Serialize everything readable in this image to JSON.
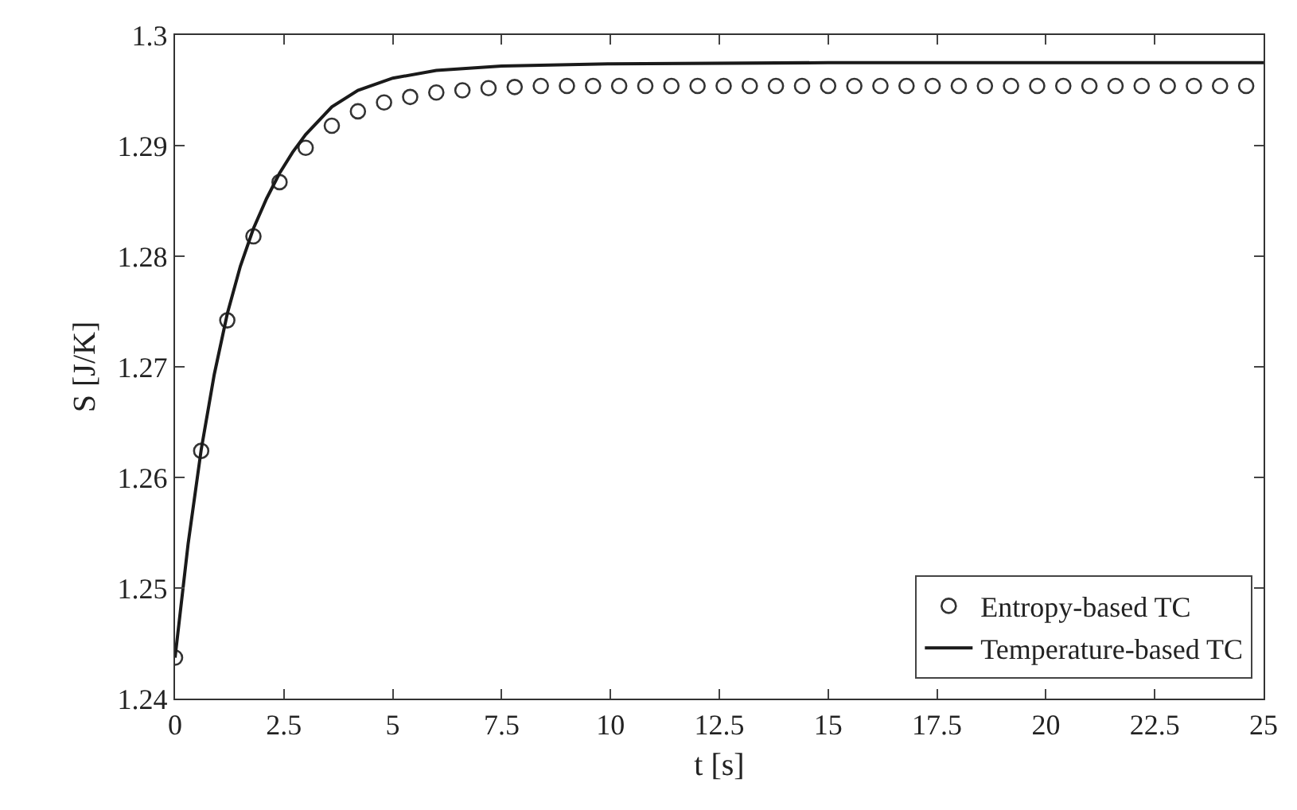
{
  "chart_data": {
    "type": "scatter",
    "xlabel": "t [s]",
    "ylabel": "S [J/K]",
    "xlim": [
      0,
      25
    ],
    "xticks": [
      0,
      2.5,
      5,
      7.5,
      10,
      12.5,
      15,
      17.5,
      20,
      22.5,
      25
    ],
    "ylim": [
      1.24,
      1.3
    ],
    "yticks": [
      1.24,
      1.25,
      1.26,
      1.27,
      1.28,
      1.29,
      1.3
    ],
    "grid": false,
    "legend": "bottom right",
    "series": [
      {
        "name": "Entropy-based TC",
        "type": "scatter",
        "marker": "circle",
        "color": "#333333",
        "x": [
          0,
          0.6,
          1.2,
          1.8,
          2.4,
          3.0,
          3.6,
          4.2,
          4.8,
          5.4,
          6.0,
          6.6,
          7.2,
          7.8,
          8.4,
          9.0,
          9.6,
          10.2,
          10.8,
          11.4,
          12.0,
          12.6,
          13.2,
          13.8,
          14.4,
          15.0,
          15.6,
          16.2,
          16.8,
          17.4,
          18.0,
          18.6,
          19.2,
          19.8,
          20.4,
          21.0,
          21.6,
          22.2,
          22.8,
          23.4,
          24.0,
          24.6
        ],
        "values": [
          1.2437,
          1.2624,
          1.2742,
          1.2818,
          1.2867,
          1.2898,
          1.2918,
          1.2931,
          1.2939,
          1.2944,
          1.2948,
          1.295,
          1.2952,
          1.2953,
          1.2954,
          1.2954,
          1.2954,
          1.2954,
          1.2954,
          1.2954,
          1.2954,
          1.2954,
          1.2954,
          1.2954,
          1.2954,
          1.2954,
          1.2954,
          1.2954,
          1.2954,
          1.2954,
          1.2954,
          1.2954,
          1.2954,
          1.2954,
          1.2954,
          1.2954,
          1.2954,
          1.2954,
          1.2954,
          1.2954,
          1.2954,
          1.2954
        ]
      },
      {
        "name": "Temperature-based TC",
        "type": "line",
        "marker": "none",
        "line_style": "solid",
        "color": "#1a1a1a",
        "x": [
          0,
          0.3,
          0.6,
          0.9,
          1.2,
          1.5,
          1.8,
          2.1,
          2.4,
          2.7,
          3.0,
          3.6,
          4.2,
          5,
          6,
          7.5,
          10,
          15,
          25
        ],
        "values": [
          1.2437,
          1.254,
          1.2625,
          1.2693,
          1.2748,
          1.2791,
          1.2825,
          1.2852,
          1.2875,
          1.2894,
          1.291,
          1.2935,
          1.295,
          1.2961,
          1.2968,
          1.2972,
          1.2974,
          1.2975,
          1.2975
        ]
      }
    ]
  }
}
